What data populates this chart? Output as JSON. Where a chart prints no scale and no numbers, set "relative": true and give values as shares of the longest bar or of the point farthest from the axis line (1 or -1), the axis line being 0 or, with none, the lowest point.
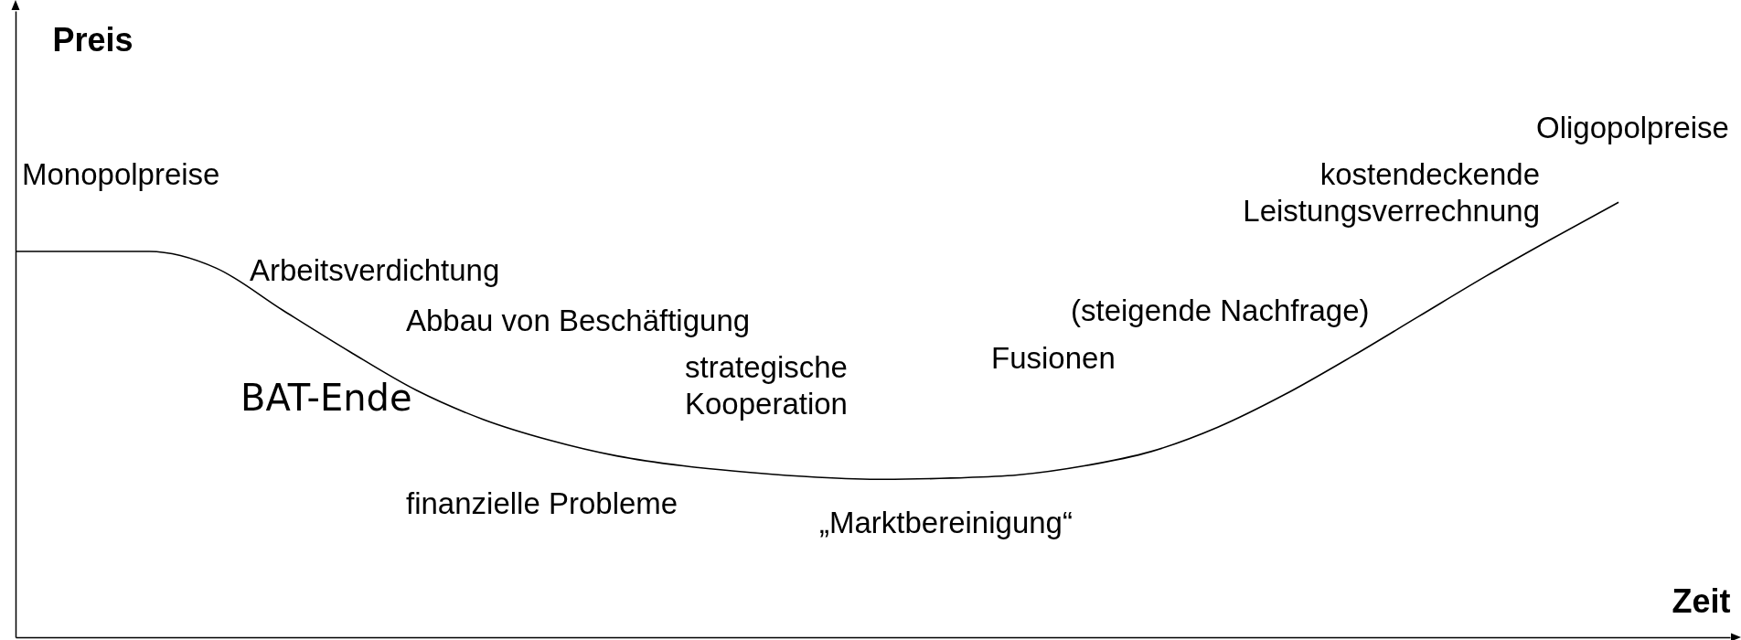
{
  "chart_data": {
    "type": "line",
    "relative": true,
    "xlabel": "Zeit",
    "ylabel": "Preis",
    "categories": [
      null,
      null,
      null,
      null,
      null,
      null,
      null,
      null,
      null,
      null,
      null,
      null,
      null,
      null,
      null,
      null,
      null,
      null,
      null,
      null,
      null,
      null,
      null,
      null,
      null
    ],
    "series": [
      {
        "color": "#000000",
        "values": [
          0.887,
          0.887,
          0.887,
          0.849,
          0.752,
          0.657,
          0.568,
          0.501,
          0.453,
          0.417,
          0.394,
          0.379,
          0.368,
          0.363,
          0.366,
          0.373,
          0.394,
          0.427,
          0.483,
          0.558,
          0.645,
          0.737,
          0.829,
          0.916,
          1
        ]
      }
    ],
    "annotations": [
      "Monopolpreise",
      "Arbeitsverdichtung",
      "Abbau von Beschäftigung",
      "BAT-Ende",
      "strategische\nKooperation",
      "finanzielle Probleme",
      "„Marktbereinigung“",
      "Fusionen",
      "(steigende Nachfrage)",
      "kostendeckende\nLeistungsverrechnung",
      "Oligopolpreise"
    ],
    "grid": false
  }
}
